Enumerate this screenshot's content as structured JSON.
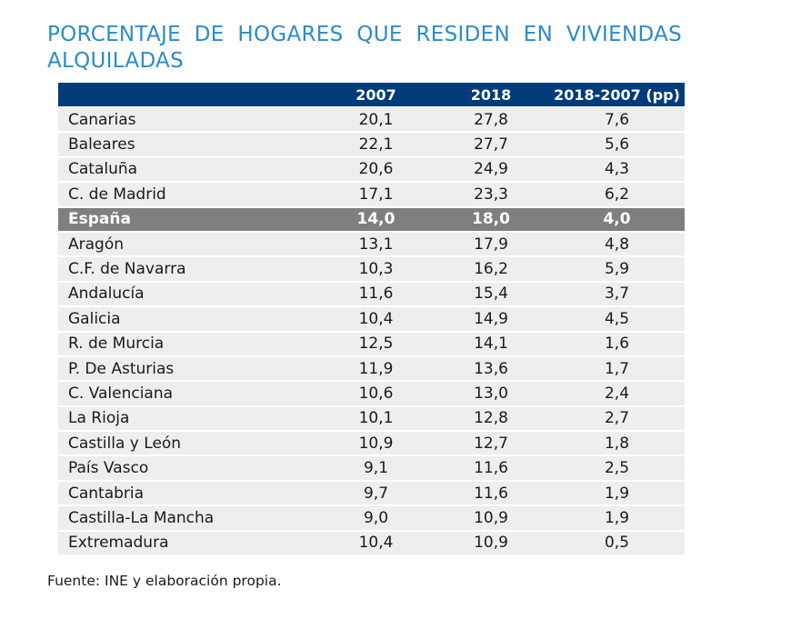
{
  "title": "PORCENTAJE DE HOGARES QUE RESIDEN EN VIVIENDAS ALQUILADAS",
  "colors": {
    "title": "#2a8ccb",
    "header_bg": "#003b7a",
    "row_bg": "#eeeeee",
    "highlight_bg": "#7f7f7f"
  },
  "table": {
    "headers": [
      "",
      "2007",
      "2018",
      "2018-2007 (pp)"
    ],
    "rows": [
      {
        "region": "Canarias",
        "y2007": "20,1",
        "y2018": "27,8",
        "diff": "7,6",
        "highlight": false
      },
      {
        "region": "Baleares",
        "y2007": "22,1",
        "y2018": "27,7",
        "diff": "5,6",
        "highlight": false
      },
      {
        "region": "Cataluña",
        "y2007": "20,6",
        "y2018": "24,9",
        "diff": "4,3",
        "highlight": false
      },
      {
        "region": "C. de Madrid",
        "y2007": "17,1",
        "y2018": "23,3",
        "diff": "6,2",
        "highlight": false
      },
      {
        "region": "España",
        "y2007": "14,0",
        "y2018": "18,0",
        "diff": "4,0",
        "highlight": true
      },
      {
        "region": "Aragón",
        "y2007": "13,1",
        "y2018": "17,9",
        "diff": "4,8",
        "highlight": false
      },
      {
        "region": "C.F. de Navarra",
        "y2007": "10,3",
        "y2018": "16,2",
        "diff": "5,9",
        "highlight": false
      },
      {
        "region": "Andalucía",
        "y2007": "11,6",
        "y2018": "15,4",
        "diff": "3,7",
        "highlight": false
      },
      {
        "region": "Galicia",
        "y2007": "10,4",
        "y2018": "14,9",
        "diff": "4,5",
        "highlight": false
      },
      {
        "region": "R. de Murcia",
        "y2007": "12,5",
        "y2018": "14,1",
        "diff": "1,6",
        "highlight": false
      },
      {
        "region": "P. De Asturias",
        "y2007": "11,9",
        "y2018": "13,6",
        "diff": "1,7",
        "highlight": false
      },
      {
        "region": "C. Valenciana",
        "y2007": "10,6",
        "y2018": "13,0",
        "diff": "2,4",
        "highlight": false
      },
      {
        "region": "La Rioja",
        "y2007": "10,1",
        "y2018": "12,8",
        "diff": "2,7",
        "highlight": false
      },
      {
        "region": "Castilla y León",
        "y2007": "10,9",
        "y2018": "12,7",
        "diff": "1,8",
        "highlight": false
      },
      {
        "region": "País Vasco",
        "y2007": "9,1",
        "y2018": "11,6",
        "diff": "2,5",
        "highlight": false
      },
      {
        "region": "Cantabria",
        "y2007": "9,7",
        "y2018": "11,6",
        "diff": "1,9",
        "highlight": false
      },
      {
        "region": "Castilla-La Mancha",
        "y2007": "9,0",
        "y2018": "10,9",
        "diff": "1,9",
        "highlight": false
      },
      {
        "region": "Extremadura",
        "y2007": "10,4",
        "y2018": "10,9",
        "diff": "0,5",
        "highlight": false
      }
    ]
  },
  "source": "Fuente: INE y elaboración propia."
}
